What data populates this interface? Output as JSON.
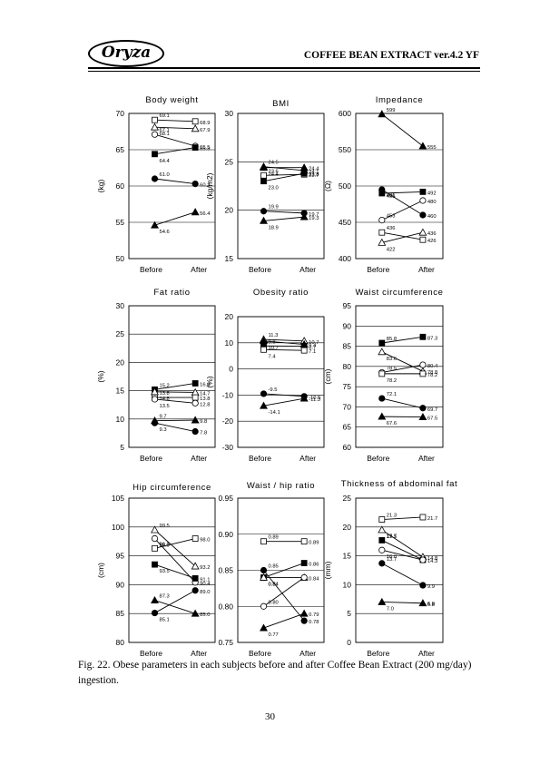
{
  "header": {
    "logo": "Oryza",
    "title": "COFFEE BEAN EXTRACT ver.4.2 YF"
  },
  "caption": "Fig. 22.  Obese parameters in each subjects before and after Coffee Bean Extract (200 mg/day) ingestion.",
  "page_number": "30",
  "chart_data": [
    {
      "type": "line",
      "title": "Body weight",
      "ylabel": "(kg)",
      "categories": [
        "Before",
        "After"
      ],
      "ylim": [
        50,
        70
      ],
      "yticks": [
        "50",
        "55",
        "60",
        "65",
        "70"
      ],
      "grid": true,
      "series": [
        {
          "marker": "open-square",
          "values": [
            69.1,
            68.9
          ],
          "labels": [
            "69.1",
            "68.9"
          ]
        },
        {
          "marker": "open-triangle",
          "values": [
            68.1,
            67.9
          ],
          "labels": [
            "68.1",
            "67.9"
          ]
        },
        {
          "marker": "open-circle",
          "values": [
            67.1,
            65.5
          ],
          "labels": [
            "67.1",
            "65.5"
          ]
        },
        {
          "marker": "filled-square",
          "values": [
            64.4,
            65.3
          ],
          "labels": [
            "64.4",
            "65.3"
          ]
        },
        {
          "marker": "filled-circle",
          "values": [
            61.0,
            60.3
          ],
          "labels": [
            "61.0",
            "60.3"
          ]
        },
        {
          "marker": "filled-triangle",
          "values": [
            54.6,
            56.4
          ],
          "labels": [
            "54.6",
            "56.4"
          ]
        }
      ]
    },
    {
      "type": "line",
      "title": "BMI",
      "ylabel": "(kg/m2)",
      "categories": [
        "Before",
        "After"
      ],
      "ylim": [
        15,
        30
      ],
      "yticks": [
        "15",
        "20",
        "25",
        "30"
      ],
      "grid": true,
      "series": [
        {
          "marker": "open-triangle",
          "values": [
            24.5,
            24.1
          ],
          "labels": [
            "24.5",
            "24.1"
          ]
        },
        {
          "marker": "filled-triangle",
          "values": [
            24.4,
            24.4
          ],
          "labels": [
            "24.4",
            "24.4"
          ]
        },
        {
          "marker": "open-square",
          "values": [
            23.6,
            23.7
          ],
          "labels": [
            "23.6",
            "23.7"
          ]
        },
        {
          "marker": "filled-square",
          "values": [
            23.0,
            23.8
          ],
          "labels": [
            "23.0",
            "23.8"
          ]
        },
        {
          "marker": "filled-circle",
          "values": [
            19.9,
            19.7
          ],
          "labels": [
            "19.9",
            "19.7"
          ]
        },
        {
          "marker": "filled-triangle",
          "values": [
            18.9,
            19.3
          ],
          "labels": [
            "18.9",
            "19.3"
          ]
        }
      ]
    },
    {
      "type": "line",
      "title": "Impedance",
      "ylabel": "(Ω)",
      "categories": [
        "Before",
        "After"
      ],
      "ylim": [
        400,
        600
      ],
      "yticks": [
        "400",
        "450",
        "500",
        "550",
        "600"
      ],
      "grid": true,
      "series": [
        {
          "marker": "filled-triangle",
          "values": [
            599,
            555
          ],
          "labels": [
            "599",
            "555"
          ]
        },
        {
          "marker": "filled-square",
          "values": [
            490,
            492
          ],
          "labels": [
            "",
            "492"
          ]
        },
        {
          "marker": "open-square",
          "values": [
            436,
            426
          ],
          "labels": [
            "436",
            "426"
          ]
        },
        {
          "marker": "filled-circle",
          "values": [
            495,
            460
          ],
          "labels": [
            "495",
            "460"
          ]
        },
        {
          "marker": "open-circle",
          "values": [
            453,
            480
          ],
          "labels": [
            "453",
            "480"
          ]
        },
        {
          "marker": "open-triangle",
          "values": [
            422,
            436
          ],
          "labels": [
            "422",
            "436"
          ]
        },
        {
          "marker": "none",
          "values": [
            481,
            481
          ],
          "labels": [
            "481",
            ""
          ]
        }
      ]
    },
    {
      "type": "line",
      "title": "Fat ratio",
      "ylabel": "(%)",
      "categories": [
        "Before",
        "After"
      ],
      "ylim": [
        5,
        30
      ],
      "yticks": [
        "5",
        "10",
        "15",
        "20",
        "25",
        "30"
      ],
      "grid": true,
      "series": [
        {
          "marker": "filled-square",
          "values": [
            15.2,
            16.3
          ],
          "labels": [
            "15.2",
            "16.3"
          ]
        },
        {
          "marker": "open-triangle",
          "values": [
            14.8,
            14.7
          ],
          "labels": [
            "14.8",
            "14.7"
          ]
        },
        {
          "marker": "open-square",
          "values": [
            13.8,
            13.8
          ],
          "labels": [
            "13.8",
            "13.8"
          ]
        },
        {
          "marker": "open-circle",
          "values": [
            13.5,
            12.8
          ],
          "labels": [
            "13.5",
            "12.8"
          ]
        },
        {
          "marker": "filled-triangle",
          "values": [
            9.7,
            9.8
          ],
          "labels": [
            "9.7",
            "9.8"
          ]
        },
        {
          "marker": "filled-circle",
          "values": [
            9.3,
            7.8
          ],
          "labels": [
            "9.3",
            "7.8"
          ]
        }
      ]
    },
    {
      "type": "line",
      "title": "Obesity ratio",
      "ylabel": "(%)",
      "categories": [
        "Before",
        "After"
      ],
      "ylim": [
        -30,
        20
      ],
      "yticks": [
        "-30",
        "-20",
        "-10",
        "0",
        "10",
        "20"
      ],
      "grid": true,
      "series": [
        {
          "marker": "open-triangle",
          "values": [
            11.3,
            10.7
          ],
          "labels": [
            "11.3",
            "10.7"
          ]
        },
        {
          "marker": "filled-triangle",
          "values": [
            10.7,
            9.4
          ],
          "labels": [
            "10.7",
            "9.4"
          ]
        },
        {
          "marker": "filled-square",
          "values": [
            8.8,
            8.7
          ],
          "labels": [
            "8.8",
            "8.7"
          ]
        },
        {
          "marker": "open-square",
          "values": [
            7.4,
            7.1
          ],
          "labels": [
            "7.4",
            "7.1"
          ]
        },
        {
          "marker": "filled-circle",
          "values": [
            -9.5,
            -10.5
          ],
          "labels": [
            "-9.5",
            "-10.5"
          ]
        },
        {
          "marker": "filled-triangle",
          "values": [
            -14.1,
            -11.3
          ],
          "labels": [
            "-14.1",
            "-11.3"
          ]
        }
      ]
    },
    {
      "type": "line",
      "title": "Waist circumference",
      "ylabel": "(cm)",
      "categories": [
        "Before",
        "After"
      ],
      "ylim": [
        60,
        95
      ],
      "yticks": [
        "60",
        "65",
        "70",
        "75",
        "80",
        "85",
        "90",
        "95"
      ],
      "grid": true,
      "series": [
        {
          "marker": "filled-square",
          "values": [
            85.8,
            87.3
          ],
          "labels": [
            "85.8",
            "87.3"
          ]
        },
        {
          "marker": "open-triangle",
          "values": [
            83.6,
            78.8
          ],
          "labels": [
            "83.6",
            "78.8"
          ]
        },
        {
          "marker": "open-circle",
          "values": [
            78.5,
            80.4
          ],
          "labels": [
            "78.5",
            "80.4"
          ]
        },
        {
          "marker": "open-square",
          "values": [
            78.2,
            78.2
          ],
          "labels": [
            "78.2",
            "78.2"
          ]
        },
        {
          "marker": "filled-circle",
          "values": [
            72.1,
            69.7
          ],
          "labels": [
            "72.1",
            "69.7"
          ]
        },
        {
          "marker": "filled-triangle",
          "values": [
            67.6,
            67.5
          ],
          "labels": [
            "67.6",
            "67.5"
          ]
        }
      ]
    },
    {
      "type": "line",
      "title": "Hip circumference",
      "ylabel": "(cm)",
      "categories": [
        "Before",
        "After"
      ],
      "ylim": [
        80,
        105
      ],
      "yticks": [
        "80",
        "85",
        "90",
        "95",
        "100",
        "105"
      ],
      "grid": true,
      "series": [
        {
          "marker": "open-triangle",
          "values": [
            99.5,
            93.2
          ],
          "labels": [
            "99.5",
            "93.2"
          ]
        },
        {
          "marker": "open-circle",
          "values": [
            98.0,
            90.4
          ],
          "labels": [
            "98.0",
            "90.4"
          ]
        },
        {
          "marker": "open-square",
          "values": [
            96.3,
            98.0
          ],
          "labels": [
            "96.3",
            "98.0"
          ]
        },
        {
          "marker": "filled-square",
          "values": [
            93.5,
            91.1
          ],
          "labels": [
            "93.5",
            "91.1"
          ]
        },
        {
          "marker": "filled-triangle",
          "values": [
            87.3,
            85.0
          ],
          "labels": [
            "87.3",
            "85.0"
          ]
        },
        {
          "marker": "filled-circle",
          "values": [
            85.1,
            89.0
          ],
          "labels": [
            "85.1",
            "89.0"
          ]
        }
      ]
    },
    {
      "type": "line",
      "title": "Waist / hip ratio",
      "ylabel": "",
      "categories": [
        "Before",
        "After"
      ],
      "ylim": [
        0.75,
        0.95
      ],
      "yticks": [
        "0.75",
        "0.80",
        "0.85",
        "0.90",
        "0.95"
      ],
      "grid": true,
      "series": [
        {
          "marker": "open-square",
          "values": [
            0.89,
            0.89
          ],
          "labels": [
            "0.89",
            "0.89"
          ]
        },
        {
          "marker": "filled-square",
          "values": [
            0.84,
            0.86
          ],
          "labels": [
            "0.84",
            "0.86"
          ]
        },
        {
          "marker": "filled-circle",
          "values": [
            0.85,
            0.78
          ],
          "labels": [
            "0.85",
            "0.78"
          ]
        },
        {
          "marker": "open-triangle",
          "values": [
            0.84,
            0.84
          ],
          "labels": [
            "0.84",
            "0.84"
          ]
        },
        {
          "marker": "open-circle",
          "values": [
            0.8,
            0.84
          ],
          "labels": [
            "0.80",
            ""
          ]
        },
        {
          "marker": "filled-triangle",
          "values": [
            0.77,
            0.79
          ],
          "labels": [
            "0.77",
            "0.79"
          ]
        }
      ]
    },
    {
      "type": "line",
      "title": "Thickness of abdominal fat",
      "ylabel": "(mm)",
      "categories": [
        "Before",
        "After"
      ],
      "ylim": [
        0,
        25
      ],
      "yticks": [
        "0",
        "5",
        "10",
        "15",
        "20",
        "25"
      ],
      "grid": true,
      "series": [
        {
          "marker": "open-square",
          "values": [
            21.3,
            21.7
          ],
          "labels": [
            "21.3",
            "21.7"
          ]
        },
        {
          "marker": "open-triangle",
          "values": [
            19.5,
            14.8
          ],
          "labels": [
            "19.5",
            "14.8"
          ]
        },
        {
          "marker": "filled-square",
          "values": [
            17.7,
            14.3
          ],
          "labels": [
            "17.7",
            "14.3"
          ]
        },
        {
          "marker": "open-circle",
          "values": [
            16.0,
            14.3
          ],
          "labels": [
            "16.0",
            ""
          ]
        },
        {
          "marker": "filled-circle",
          "values": [
            13.7,
            9.9
          ],
          "labels": [
            "13.7",
            "9.9"
          ]
        },
        {
          "marker": "filled-triangle",
          "values": [
            7.0,
            6.8
          ],
          "labels": [
            "7.0",
            "6.8"
          ]
        },
        {
          "marker": "none",
          "values": [
            6.9,
            6.9
          ],
          "labels": [
            "",
            "6.9"
          ]
        }
      ]
    }
  ]
}
